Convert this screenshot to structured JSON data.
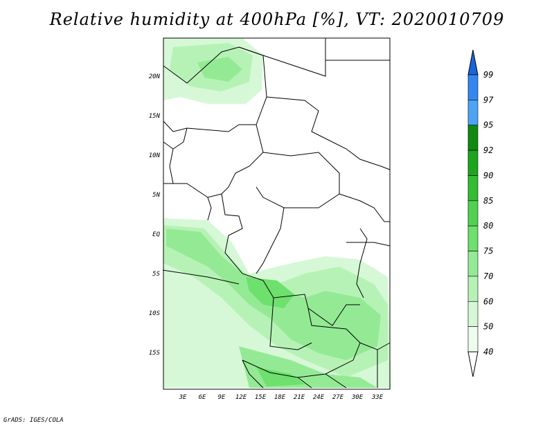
{
  "title": "Relative humidity at 400hPa [%], VT: 2020010709",
  "credit": "GrADS: IGES/COLA",
  "map": {
    "lat_labels": [
      "20N",
      "15N",
      "10N",
      "5N",
      "EQ",
      "5S",
      "10S",
      "15S"
    ],
    "lon_labels": [
      "3E",
      "6E",
      "9E",
      "12E",
      "15E",
      "18E",
      "21E",
      "24E",
      "27E",
      "30E",
      "33E"
    ]
  },
  "colorbar": {
    "labels": [
      "99",
      "97",
      "95",
      "92",
      "90",
      "85",
      "80",
      "75",
      "70",
      "60",
      "50",
      "40"
    ],
    "colors": [
      "#1a66d9",
      "#3387ee",
      "#4da3f4",
      "#0f8a0f",
      "#1ea51e",
      "#32bd32",
      "#50d250",
      "#6de06d",
      "#94ea94",
      "#b6f2b6",
      "#d6f8d6",
      "#eefcee"
    ]
  }
}
